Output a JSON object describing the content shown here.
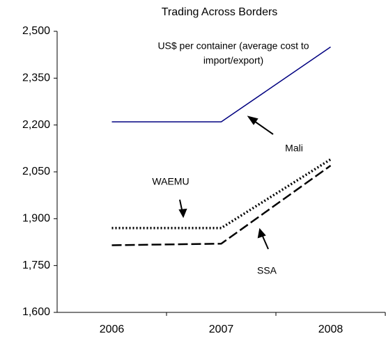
{
  "chart_data": {
    "type": "line",
    "title": "Trading Across Borders",
    "note": [
      "US$ per container (average cost to",
      "import/export)"
    ],
    "categories": [
      "2006",
      "2007",
      "2008"
    ],
    "series": [
      {
        "name": "Mali",
        "color": "#000080",
        "style": "solid",
        "values": [
          2210,
          2210,
          2450
        ]
      },
      {
        "name": "WAEMU",
        "color": "#000000",
        "style": "dotted",
        "values": [
          1870,
          1870,
          2090
        ]
      },
      {
        "name": "SSA",
        "color": "#000000",
        "style": "dashed",
        "values": [
          1815,
          1820,
          2070
        ]
      }
    ],
    "ylim": [
      1600,
      2500
    ],
    "yticks": [
      {
        "value": 1600,
        "label": "1,600"
      },
      {
        "value": 1750,
        "label": "1,750"
      },
      {
        "value": 1900,
        "label": "1,900"
      },
      {
        "value": 2050,
        "label": "2,050"
      },
      {
        "value": 2200,
        "label": "2,200"
      },
      {
        "value": 2350,
        "label": "2,350"
      },
      {
        "value": 2500,
        "label": "2,500"
      }
    ],
    "grid": false
  }
}
